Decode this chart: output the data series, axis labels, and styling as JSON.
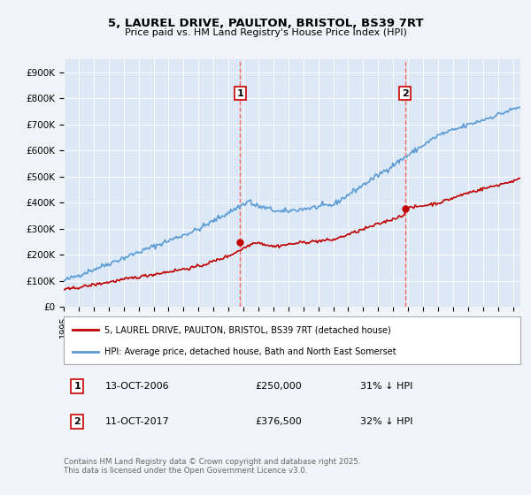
{
  "title1": "5, LAUREL DRIVE, PAULTON, BRISTOL, BS39 7RT",
  "title2": "Price paid vs. HM Land Registry's House Price Index (HPI)",
  "background_color": "#f0f4f8",
  "plot_bg_color": "#dce8f5",
  "yticks": [
    0,
    100000,
    200000,
    300000,
    400000,
    500000,
    600000,
    700000,
    800000,
    900000
  ],
  "ytick_labels": [
    "£0",
    "£100K",
    "£200K",
    "£300K",
    "£400K",
    "£500K",
    "£600K",
    "£700K",
    "£800K",
    "£900K"
  ],
  "sale1_date": 2006.79,
  "sale1_price": 250000,
  "sale2_date": 2017.79,
  "sale2_price": 376500,
  "hpi_color": "#5b9bd5",
  "price_color": "#c00000",
  "vline_color": "#ff6666",
  "legend_line1": "5, LAUREL DRIVE, PAULTON, BRISTOL, BS39 7RT (detached house)",
  "legend_line2": "HPI: Average price, detached house, Bath and North East Somerset",
  "footer": "Contains HM Land Registry data © Crown copyright and database right 2025.\nThis data is licensed under the Open Government Licence v3.0.",
  "xstart": 1995,
  "xend": 2025
}
